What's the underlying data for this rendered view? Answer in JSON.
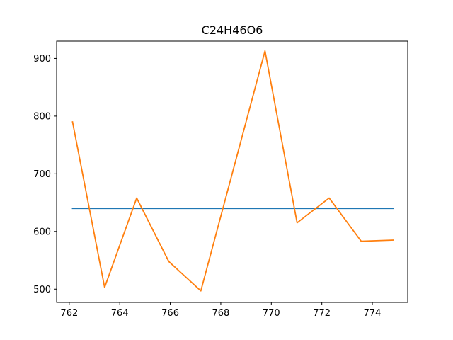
{
  "chart_data": {
    "type": "line",
    "title": "C24H46O6",
    "xlabel": "",
    "ylabel": "",
    "xlim": [
      761.5,
      775.4
    ],
    "ylim": [
      477,
      930
    ],
    "x_ticks": [
      762,
      764,
      766,
      768,
      770,
      772,
      774
    ],
    "y_ticks": [
      500,
      600,
      700,
      800,
      900
    ],
    "grid": false,
    "series": [
      {
        "color": "#1f77b4",
        "x": [
          762.13,
          774.83
        ],
        "y": [
          640,
          640
        ]
      },
      {
        "color": "#ff7f0e",
        "x": [
          762.13,
          763.4,
          764.67,
          765.94,
          767.21,
          768.48,
          769.75,
          771.02,
          772.29,
          773.56,
          774.83
        ],
        "y": [
          790,
          503,
          658,
          548,
          497,
          705,
          913,
          615,
          658,
          583,
          585
        ]
      }
    ]
  }
}
